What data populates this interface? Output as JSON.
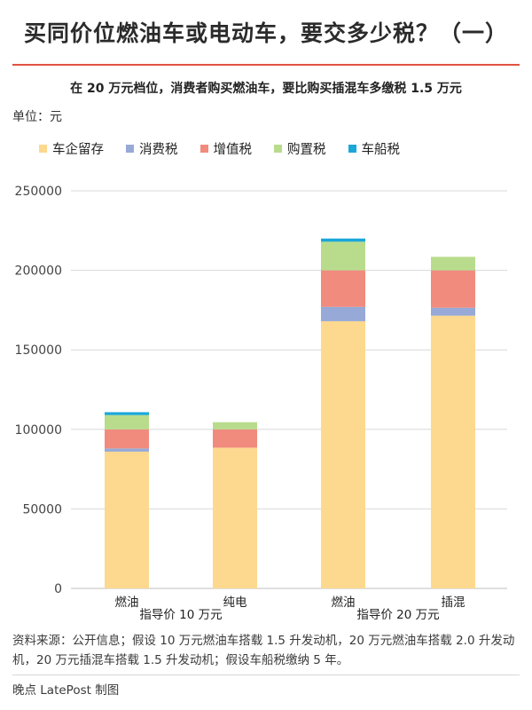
{
  "header": {
    "title": "买同价位燃油车或电动车，要交多少税？（一）",
    "subtitle": "在 20 万元档位，消费者购买燃油车，要比购买插混车多缴税 1.5 万元",
    "unit": "单位：元"
  },
  "colors": {
    "title_rule": "#e0523f",
    "grid": "#d9d9d9",
    "axis": "#bfbfbf"
  },
  "chart_data": {
    "type": "bar",
    "stacked": true,
    "categories": [
      "燃油",
      "纯电",
      "燃油",
      "插混"
    ],
    "groups": [
      {
        "label": "指导价 10 万元",
        "categories": [
          0,
          1
        ]
      },
      {
        "label": "指导价 20 万元",
        "categories": [
          2,
          3
        ]
      }
    ],
    "series": [
      {
        "name": "车企留存",
        "color": "#fcd98f",
        "values": [
          86000,
          88500,
          168000,
          171500
        ]
      },
      {
        "name": "消费税",
        "color": "#97a9d6",
        "values": [
          2000,
          0,
          9000,
          5000
        ]
      },
      {
        "name": "增值税",
        "color": "#f08b7e",
        "values": [
          12000,
          11500,
          23000,
          23500
        ]
      },
      {
        "name": "购置税",
        "color": "#b8dc8c",
        "values": [
          9000,
          4500,
          18000,
          8500
        ]
      },
      {
        "name": "车船税",
        "color": "#1ba7d8",
        "values": [
          1800,
          0,
          2000,
          0
        ]
      }
    ],
    "yticks": [
      0,
      50000,
      100000,
      150000,
      200000,
      250000
    ],
    "ylim": [
      0,
      250000
    ],
    "grid": true,
    "legend_position": "top"
  },
  "footer": {
    "source": "资料来源：公开信息；假设 10 万元燃油车搭载 1.5 升发动机，20 万元燃油车搭载 2.0 升发动机，20 万元插混车搭载 1.5 升发动机；假设车船税缴纳 5 年。",
    "credit": "晚点 LatePost 制图"
  }
}
